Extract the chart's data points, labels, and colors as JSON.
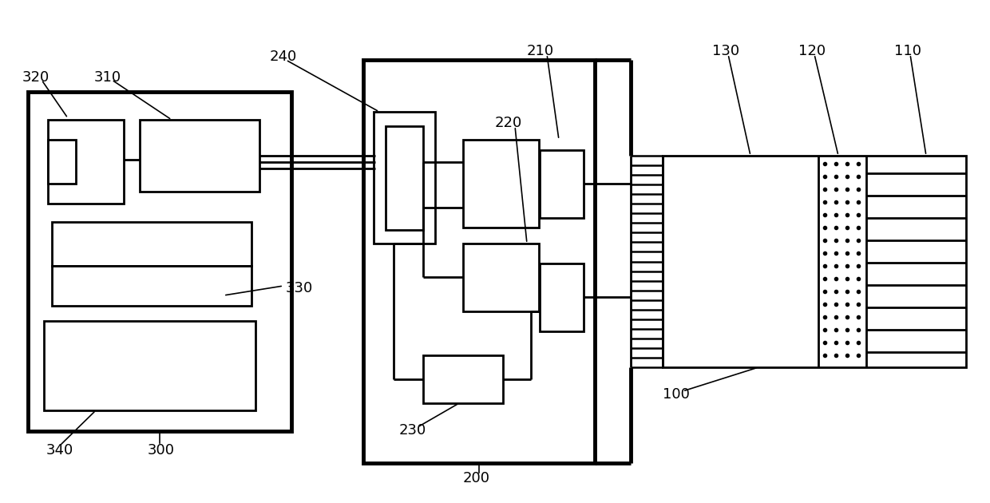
{
  "bg": "#ffffff",
  "lc": "#000000",
  "lw": 2.0,
  "tlw": 3.5,
  "fw": 12.4,
  "fh": 6.3
}
